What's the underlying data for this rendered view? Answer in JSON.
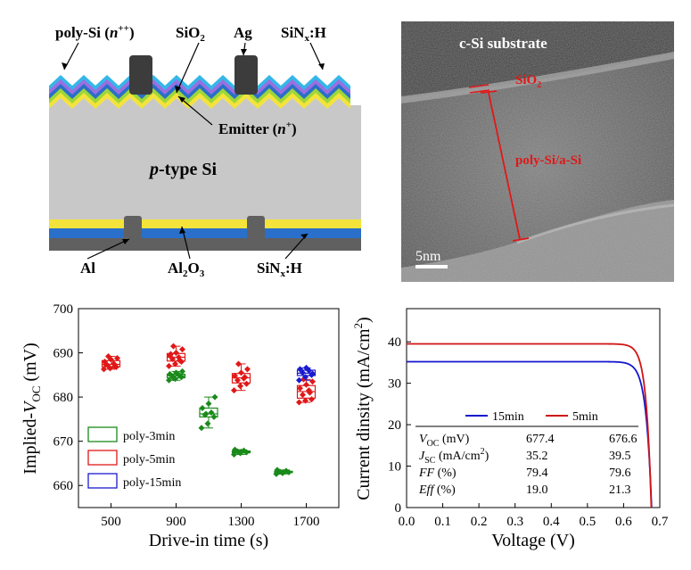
{
  "schematic": {
    "label_polysi_base": "poly-Si (",
    "label_polysi_n": "n",
    "label_polysi_sup": "++",
    "label_polysi_close": ")",
    "label_sio2_base": "SiO",
    "label_sio2_sub": "2",
    "label_ag": "Ag",
    "label_sinx_top_base": "SiN",
    "label_sinx_top_sub": "x",
    "label_sinx_top_tail": ":H",
    "label_emitter_base": "Emitter (",
    "label_emitter_n": "n",
    "label_emitter_sup": "+",
    "label_emitter_close": ")",
    "label_ptype_p": "p",
    "label_ptype_rest": "-type Si",
    "label_al": "Al",
    "label_al2o3_a": "Al",
    "label_al2o3_sub1": "2",
    "label_al2o3_b": "O",
    "label_al2o3_sub2": "3",
    "label_sinx_bot_base": "SiN",
    "label_sinx_bot_sub": "x",
    "label_sinx_bot_tail": ":H",
    "colors": {
      "substrate": "#c8c8c8",
      "metal": "#3c3c3c",
      "yellow": "#f3e33a",
      "blue": "#2a6fc9",
      "green": "#9cd63b",
      "purple": "#9a6fe0",
      "cyan": "#34b7e8"
    }
  },
  "tem": {
    "label_substrate": "c-Si substrate",
    "label_sio2_base": "SiO",
    "label_sio2_sub": "2",
    "label_polysi": "poly-Si/a-Si",
    "scale_bar": "5nm",
    "annotation_color": "#e01818"
  },
  "chart_data": [
    {
      "type": "box",
      "ylabel_base": "Implied-",
      "ylabel_v": "V",
      "ylabel_sub": "OC",
      "ylabel_unit": " (mV)",
      "xlabel": "Drive-in time (s)",
      "x_ticks": [
        500,
        900,
        1300,
        1700
      ],
      "y_ticks": [
        660,
        670,
        680,
        690,
        700
      ],
      "xlim": [
        300,
        1900
      ],
      "ylim": [
        655,
        700
      ],
      "legend": [
        "poly-3min",
        "poly-5min",
        "poly-15min"
      ],
      "series": [
        {
          "name": "poly-3min",
          "color": "#1a8a1a",
          "groups": [
            {
              "x": 900,
              "values": [
                683.8,
                684.1,
                684.5,
                684.7,
                685.0,
                685.2,
                685.5,
                685.8,
                684.3,
                684.9
              ]
            },
            {
              "x": 1100,
              "values": [
                673.0,
                674.0,
                675.5,
                676.0,
                676.5,
                677.5,
                678.5,
                680.0,
                676.2
              ]
            },
            {
              "x": 1300,
              "values": [
                667.0,
                667.3,
                667.5,
                667.7,
                667.9,
                668.1,
                667.6
              ]
            },
            {
              "x": 1560,
              "values": [
                662.6,
                662.8,
                663.0,
                663.1,
                663.3,
                663.5,
                663.0
              ]
            }
          ]
        },
        {
          "name": "poly-5min",
          "color": "#e01818",
          "groups": [
            {
              "x": 500,
              "values": [
                686.3,
                686.5,
                686.8,
                687.2,
                687.6,
                688.0,
                688.5,
                688.8,
                689.2,
                686.9,
                687.4
              ]
            },
            {
              "x": 900,
              "values": [
                687.0,
                687.5,
                688.0,
                688.6,
                689.0,
                689.4,
                690.0,
                690.8,
                691.5,
                688.3,
                689.7
              ]
            },
            {
              "x": 1300,
              "values": [
                681.5,
                682.5,
                683.0,
                683.8,
                684.2,
                684.8,
                685.5,
                686.3,
                687.5,
                684.5
              ]
            },
            {
              "x": 1700,
              "values": [
                678.8,
                679.2,
                679.5,
                680.5,
                681.5,
                682.0,
                682.8,
                683.5,
                684.0,
                681.0
              ]
            }
          ]
        },
        {
          "name": "poly-15min",
          "color": "#1a1ad0",
          "groups": [
            {
              "x": 1700,
              "values": [
                683.8,
                684.5,
                685.0,
                685.5,
                686.0,
                686.3,
                686.6,
                685.3
              ]
            }
          ]
        }
      ]
    },
    {
      "type": "line",
      "xlabel": "Voltage (V)",
      "ylabel_base": "Current dinsity (mA/cm",
      "ylabel_sup": "2",
      "ylabel_close": ")",
      "x_ticks": [
        0.0,
        0.1,
        0.2,
        0.3,
        0.4,
        0.5,
        0.6,
        0.7
      ],
      "y_ticks": [
        0,
        10,
        20,
        30,
        40
      ],
      "xlim": [
        0.0,
        0.7
      ],
      "ylim": [
        0,
        48
      ],
      "series": [
        {
          "name": "15min",
          "color": "#1414d0",
          "jsc": 35.2,
          "voc": 0.6774,
          "n": 0.0155
        },
        {
          "name": "5min",
          "color": "#d01414",
          "jsc": 39.5,
          "voc": 0.6766,
          "n": 0.0143
        }
      ],
      "table": {
        "header": [
          "",
          "15min",
          "5min"
        ],
        "rows": [
          {
            "label_i": "V",
            "label_sub": "OC",
            "label_tail": " (mV)",
            "v15": "677.4",
            "v5": "676.6"
          },
          {
            "label_i": "J",
            "label_sub": "SC",
            "label_tail": " (mA/cm",
            "label_sup": "2",
            "label_close": ")",
            "v15": "35.2",
            "v5": "39.5"
          },
          {
            "label_i": "FF",
            "label_sub": "",
            "label_tail": " (%)",
            "v15": "79.4",
            "v5": "79.6"
          },
          {
            "label_i": "Eff",
            "label_sub": "",
            "label_tail": " (%)",
            "v15": "19.0",
            "v5": "21.3"
          }
        ]
      }
    }
  ]
}
